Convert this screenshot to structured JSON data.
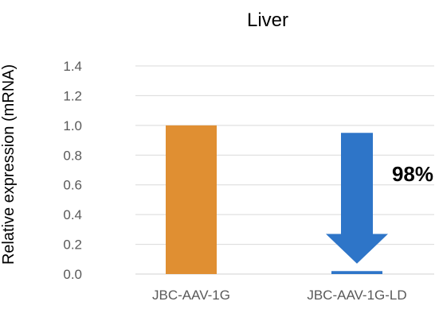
{
  "chart_data": {
    "type": "bar",
    "title": "Liver",
    "ylabel": "Relative expression (mRNA)",
    "xlabel": "",
    "categories": [
      "JBC-AAV-1G",
      "JBC-AAV-1G-LD"
    ],
    "values": [
      1.0,
      0.02
    ],
    "bar_colors": [
      "#E08F32",
      "#2E75C8"
    ],
    "ylim": [
      0,
      1.4
    ],
    "yticks": [
      "0.0",
      "0.2",
      "0.4",
      "0.6",
      "0.8",
      "1.0",
      "1.2",
      "1.4"
    ],
    "grid": true,
    "legend": "none",
    "annotation": {
      "text": "98%",
      "arrow_from": 0.95,
      "arrow_to": 0.02,
      "arrow_color": "#2E75C8"
    }
  }
}
